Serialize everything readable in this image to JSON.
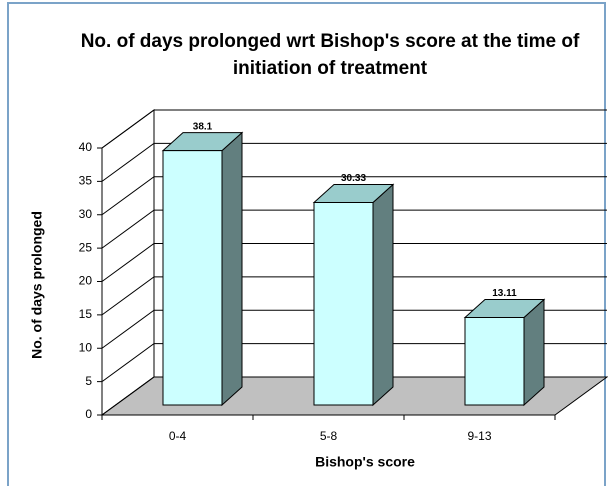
{
  "chart_data": {
    "type": "bar3d",
    "title": "No. of days prolonged wrt Bishop's score at the time of initiation of treatment",
    "xlabel": "Bishop's score",
    "ylabel": "No. of days prolonged",
    "categories": [
      "0-4",
      "5-8",
      "9-13"
    ],
    "values": [
      38.1,
      30.33,
      13.11
    ],
    "color": "#ccffff",
    "ylim": [
      0,
      40
    ],
    "yticks": [
      0,
      5,
      10,
      15,
      20,
      25,
      30,
      35,
      40
    ],
    "grid": true
  }
}
